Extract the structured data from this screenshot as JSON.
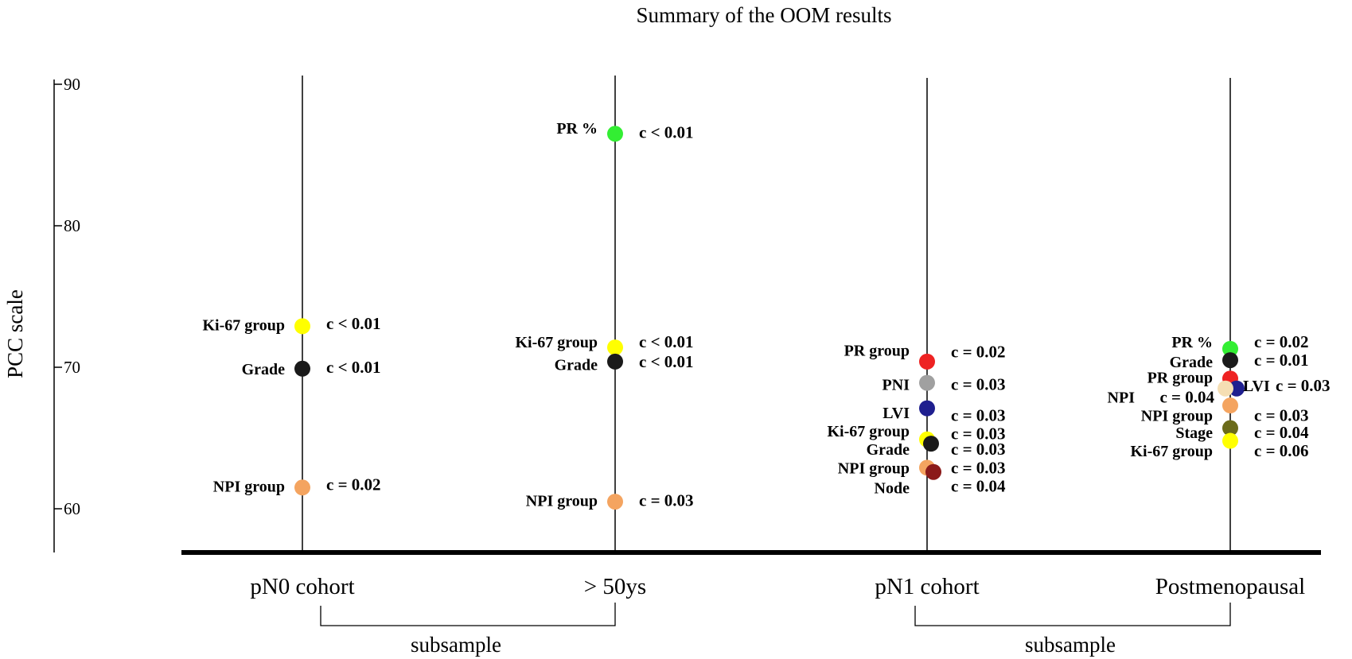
{
  "chart_data": {
    "type": "scatter",
    "title": "Summary of the OOM results",
    "ylabel": "PCC scale",
    "xlabel": "",
    "ylim": [
      57,
      90
    ],
    "yticks": [
      60,
      70,
      80,
      90
    ],
    "categories": [
      "pN0 cohort",
      "> 50ys",
      "pN1 cohort",
      "Postmenopausal"
    ],
    "groups": [
      {
        "label": "subsample",
        "from": 0,
        "to": 1
      },
      {
        "label": "subsample",
        "from": 2,
        "to": 3
      }
    ],
    "series": [
      {
        "category": "pN0 cohort",
        "points": [
          {
            "name": "Ki-67 group",
            "pcc": 72.9,
            "c": "c < 0.01",
            "color": "#ffff00",
            "label_pcc": 73.0,
            "c_pcc": 73.1
          },
          {
            "name": "Grade",
            "pcc": 69.9,
            "c": "c < 0.01",
            "color": "#1a1a1a",
            "label_pcc": 69.9,
            "c_pcc": 70.0
          },
          {
            "name": "NPI group",
            "pcc": 61.5,
            "c": "c = 0.02",
            "color": "#f4a460",
            "label_pcc": 61.6,
            "c_pcc": 61.7
          }
        ]
      },
      {
        "category": "> 50ys",
        "points": [
          {
            "name": "PR %",
            "pcc": 86.5,
            "c": "c < 0.01",
            "color": "#33ee33",
            "label_pcc": 86.9,
            "c_pcc": 86.6
          },
          {
            "name": "Ki-67 group",
            "pcc": 71.4,
            "c": "c < 0.01",
            "color": "#ffff00",
            "label_pcc": 71.8,
            "c_pcc": 71.8
          },
          {
            "name": "Grade",
            "pcc": 70.4,
            "c": "c < 0.01",
            "color": "#1a1a1a",
            "label_pcc": 70.2,
            "c_pcc": 70.4
          },
          {
            "name": "NPI group",
            "pcc": 60.5,
            "c": "c = 0.03",
            "color": "#f4a460",
            "label_pcc": 60.6,
            "c_pcc": 60.6
          }
        ]
      },
      {
        "category": "pN1 cohort",
        "points": [
          {
            "name": "PR group",
            "pcc": 70.4,
            "c": "c = 0.02",
            "color": "#ee2222",
            "label_pcc": 71.2,
            "c_pcc": 71.1
          },
          {
            "name": "PNI",
            "pcc": 68.9,
            "c": "c = 0.03",
            "color": "#a0a0a0",
            "label_pcc": 68.8,
            "c_pcc": 68.8
          },
          {
            "name": "LVI",
            "pcc": 67.1,
            "c": "c = 0.03",
            "color": "#1f1f8f",
            "label_pcc": 66.8,
            "c_pcc": 66.6
          },
          {
            "name": "Ki-67 group",
            "pcc": 64.9,
            "c": "c = 0.03",
            "color": "#ffff00",
            "label_pcc": 65.5,
            "c_pcc": 65.3
          },
          {
            "name": "Grade",
            "pcc": 64.6,
            "c": "c = 0.03",
            "color": "#1a1a1a",
            "label_pcc": 64.2,
            "c_pcc": 64.2
          },
          {
            "name": "NPI group",
            "pcc": 62.9,
            "c": "c = 0.03",
            "color": "#f4a460",
            "label_pcc": 62.9,
            "c_pcc": 62.9
          },
          {
            "name": "Node",
            "pcc": 62.6,
            "c": "c = 0.04",
            "color": "#8b1a1a",
            "label_pcc": 61.5,
            "c_pcc": 61.6
          }
        ]
      },
      {
        "category": "Postmenopausal",
        "points": [
          {
            "name": "PR %",
            "pcc": 71.3,
            "c": "c = 0.02",
            "color": "#33ee33",
            "label_pcc": 71.8,
            "c_pcc": 71.8
          },
          {
            "name": "Grade",
            "pcc": 70.5,
            "c": "c = 0.01",
            "color": "#1a1a1a",
            "label_pcc": 70.4,
            "c_pcc": 70.5
          },
          {
            "name": "PR group",
            "pcc": 69.2,
            "c": "",
            "color": "#ee2222",
            "label_pcc": 69.3,
            "c_pcc": 69.3
          },
          {
            "name": "LVI",
            "pcc": 68.5,
            "c": "c = 0.03",
            "color": "#1f1f8f",
            "label_pcc": 68.7,
            "c_pcc": 68.7
          },
          {
            "name": "NPI",
            "pcc": 68.5,
            "c": "c = 0.04",
            "color": "#f5deb3",
            "label_pcc": 67.9,
            "c_pcc": 67.9
          },
          {
            "name": "NPI group",
            "pcc": 67.3,
            "c": "c = 0.03",
            "color": "#f4a460",
            "label_pcc": 66.6,
            "c_pcc": 66.6
          },
          {
            "name": "Stage",
            "pcc": 65.7,
            "c": "c = 0.04",
            "color": "#6b6b1a",
            "label_pcc": 65.4,
            "c_pcc": 65.4
          },
          {
            "name": "Ki-67 group",
            "pcc": 64.8,
            "c": "c = 0.06",
            "color": "#ffff00",
            "label_pcc": 64.1,
            "c_pcc": 64.1
          }
        ]
      }
    ]
  }
}
